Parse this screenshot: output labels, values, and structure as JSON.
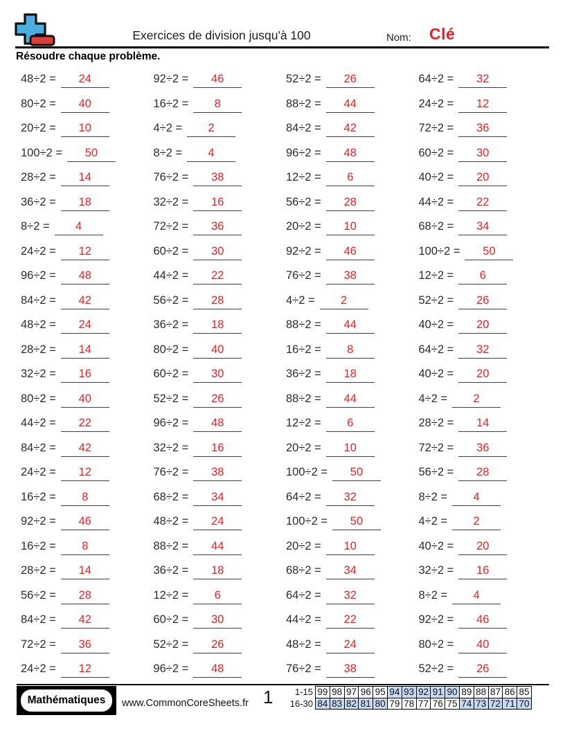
{
  "colors": {
    "answer_red": "#ed1c24",
    "logo_blue": "#4bafdf",
    "logo_red": "#e23c3c",
    "highlight_blue": "#c6d9f1",
    "text_dark": "#2a2a2a"
  },
  "header": {
    "title": "Exercices de division jusqu'à 100",
    "name_label": "Nom:",
    "name_value": "Clé",
    "instruction": "Résoudre chaque problème."
  },
  "problems": [
    [
      "48÷2",
      "24"
    ],
    [
      "92÷2",
      "46"
    ],
    [
      "52÷2",
      "26"
    ],
    [
      "64÷2",
      "32"
    ],
    [
      "80÷2",
      "40"
    ],
    [
      "16÷2",
      "8"
    ],
    [
      "88÷2",
      "44"
    ],
    [
      "24÷2",
      "12"
    ],
    [
      "20÷2",
      "10"
    ],
    [
      "4÷2",
      "2"
    ],
    [
      "84÷2",
      "42"
    ],
    [
      "72÷2",
      "36"
    ],
    [
      "100÷2",
      "50"
    ],
    [
      "8÷2",
      "4"
    ],
    [
      "96÷2",
      "48"
    ],
    [
      "60÷2",
      "30"
    ],
    [
      "28÷2",
      "14"
    ],
    [
      "76÷2",
      "38"
    ],
    [
      "12÷2",
      "6"
    ],
    [
      "40÷2",
      "20"
    ],
    [
      "36÷2",
      "18"
    ],
    [
      "32÷2",
      "16"
    ],
    [
      "56÷2",
      "28"
    ],
    [
      "44÷2",
      "22"
    ],
    [
      "8÷2",
      "4"
    ],
    [
      "72÷2",
      "36"
    ],
    [
      "20÷2",
      "10"
    ],
    [
      "68÷2",
      "34"
    ],
    [
      "24÷2",
      "12"
    ],
    [
      "60÷2",
      "30"
    ],
    [
      "92÷2",
      "46"
    ],
    [
      "100÷2",
      "50"
    ],
    [
      "96÷2",
      "48"
    ],
    [
      "44÷2",
      "22"
    ],
    [
      "76÷2",
      "38"
    ],
    [
      "12÷2",
      "6"
    ],
    [
      "84÷2",
      "42"
    ],
    [
      "56÷2",
      "28"
    ],
    [
      "4÷2",
      "2"
    ],
    [
      "52÷2",
      "26"
    ],
    [
      "48÷2",
      "24"
    ],
    [
      "36÷2",
      "18"
    ],
    [
      "88÷2",
      "44"
    ],
    [
      "40÷2",
      "20"
    ],
    [
      "28÷2",
      "14"
    ],
    [
      "80÷2",
      "40"
    ],
    [
      "16÷2",
      "8"
    ],
    [
      "64÷2",
      "32"
    ],
    [
      "32÷2",
      "16"
    ],
    [
      "60÷2",
      "30"
    ],
    [
      "36÷2",
      "18"
    ],
    [
      "40÷2",
      "20"
    ],
    [
      "80÷2",
      "40"
    ],
    [
      "52÷2",
      "26"
    ],
    [
      "88÷2",
      "44"
    ],
    [
      "4÷2",
      "2"
    ],
    [
      "44÷2",
      "22"
    ],
    [
      "96÷2",
      "48"
    ],
    [
      "12÷2",
      "6"
    ],
    [
      "28÷2",
      "14"
    ],
    [
      "84÷2",
      "42"
    ],
    [
      "32÷2",
      "16"
    ],
    [
      "20÷2",
      "10"
    ],
    [
      "72÷2",
      "36"
    ],
    [
      "24÷2",
      "12"
    ],
    [
      "76÷2",
      "38"
    ],
    [
      "100÷2",
      "50"
    ],
    [
      "56÷2",
      "28"
    ],
    [
      "16÷2",
      "8"
    ],
    [
      "68÷2",
      "34"
    ],
    [
      "64÷2",
      "32"
    ],
    [
      "8÷2",
      "4"
    ],
    [
      "92÷2",
      "46"
    ],
    [
      "48÷2",
      "24"
    ],
    [
      "100÷2",
      "50"
    ],
    [
      "4÷2",
      "2"
    ],
    [
      "16÷2",
      "8"
    ],
    [
      "88÷2",
      "44"
    ],
    [
      "20÷2",
      "10"
    ],
    [
      "40÷2",
      "20"
    ],
    [
      "28÷2",
      "14"
    ],
    [
      "36÷2",
      "18"
    ],
    [
      "68÷2",
      "34"
    ],
    [
      "32÷2",
      "16"
    ],
    [
      "56÷2",
      "28"
    ],
    [
      "12÷2",
      "6"
    ],
    [
      "64÷2",
      "32"
    ],
    [
      "8÷2",
      "4"
    ],
    [
      "84÷2",
      "42"
    ],
    [
      "60÷2",
      "30"
    ],
    [
      "44÷2",
      "22"
    ],
    [
      "92÷2",
      "46"
    ],
    [
      "72÷2",
      "36"
    ],
    [
      "52÷2",
      "26"
    ],
    [
      "48÷2",
      "24"
    ],
    [
      "80÷2",
      "40"
    ],
    [
      "24÷2",
      "12"
    ],
    [
      "96÷2",
      "48"
    ],
    [
      "76÷2",
      "38"
    ],
    [
      "52÷2",
      "26"
    ]
  ],
  "footer": {
    "brand": "Mathématiques",
    "website": "www.CommonCoreSheets.fr",
    "page_number": "1",
    "grade_table": {
      "rows": [
        {
          "label": "1-15",
          "values": [
            99,
            98,
            97,
            96,
            95,
            94,
            93,
            92,
            91,
            90,
            89,
            88,
            87,
            86,
            85
          ],
          "highlighted": [
            94,
            93,
            92,
            91,
            90
          ]
        },
        {
          "label": "16-30",
          "values": [
            84,
            83,
            82,
            81,
            80,
            79,
            78,
            77,
            76,
            75,
            74,
            73,
            72,
            71,
            70
          ],
          "highlighted": [
            84,
            83,
            82,
            81,
            80,
            74,
            73,
            72,
            71,
            70
          ]
        }
      ]
    }
  }
}
